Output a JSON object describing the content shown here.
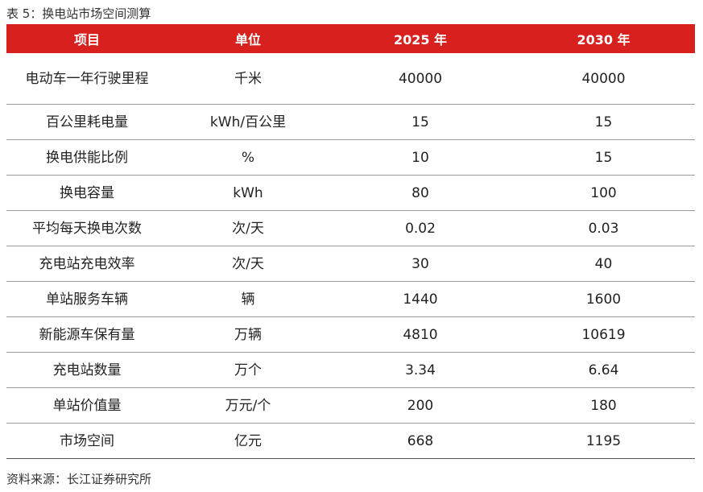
{
  "caption": "表 5：换电站市场空间测算",
  "table": {
    "headers": [
      "项目",
      "单位",
      "2025 年",
      "2030 年"
    ],
    "rows": [
      [
        "电动车一年行驶里程",
        "千米",
        "40000",
        "40000"
      ],
      [
        "百公里耗电量",
        "kWh/百公里",
        "15",
        "15"
      ],
      [
        "换电供能比例",
        "%",
        "10",
        "15"
      ],
      [
        "换电容量",
        "kWh",
        "80",
        "100"
      ],
      [
        "平均每天换电次数",
        "次/天",
        "0.02",
        "0.03"
      ],
      [
        "充电站充电效率",
        "次/天",
        "30",
        "40"
      ],
      [
        "单站服务车辆",
        "辆",
        "1440",
        "1600"
      ],
      [
        "新能源车保有量",
        "万辆",
        "4810",
        "10619"
      ],
      [
        "充电站数量",
        "万个",
        "3.34",
        "6.64"
      ],
      [
        "单站价值量",
        "万元/个",
        "200",
        "180"
      ],
      [
        "市场空间",
        "亿元",
        "668",
        "1195"
      ]
    ]
  },
  "source": "资料来源：长江证券研究所",
  "colors": {
    "header_bg": "#d8201f",
    "header_text": "#ffffff"
  }
}
